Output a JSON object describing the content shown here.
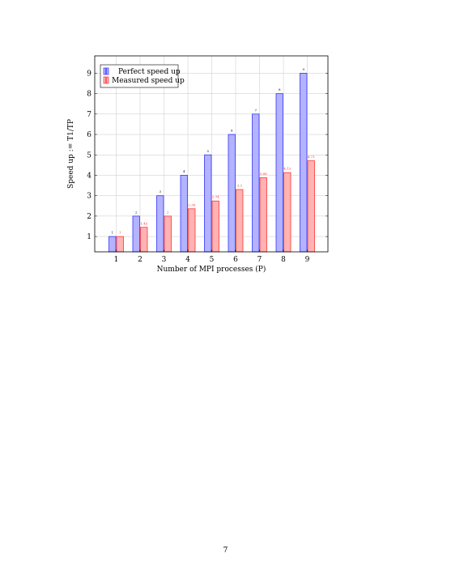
{
  "chart_data": {
    "type": "bar",
    "categories": [
      "1",
      "2",
      "3",
      "4",
      "5",
      "6",
      "7",
      "8",
      "9"
    ],
    "series": [
      {
        "name": "Perfect speed up",
        "values": [
          1,
          2,
          3,
          4,
          5,
          6,
          7,
          8,
          9
        ],
        "labels": [
          "1",
          "2",
          "3",
          "4",
          "5",
          "6",
          "7",
          "8",
          "9"
        ],
        "fill": "#b3b3ff",
        "stroke": "#3333ff"
      },
      {
        "name": "Measured speed up",
        "values": [
          1,
          1.45,
          2,
          2.36,
          2.74,
          3.3,
          3.88,
          4.13,
          4.71
        ],
        "labels": [
          "1",
          "1.45",
          "2",
          "2.36",
          "2.74",
          "3.3",
          "3.88",
          "4.13",
          "4.71"
        ],
        "fill": "#ffb3b3",
        "stroke": "#ff3333"
      }
    ],
    "xlabel": "Number of MPI processes (P)",
    "ylabel": "Speed up := T1/TP",
    "ylim": [
      0.25,
      9.85
    ],
    "yticks": [
      1,
      2,
      3,
      4,
      5,
      6,
      7,
      8,
      9
    ],
    "grid": true,
    "legend": "top-left"
  },
  "page": {
    "number": "7"
  }
}
